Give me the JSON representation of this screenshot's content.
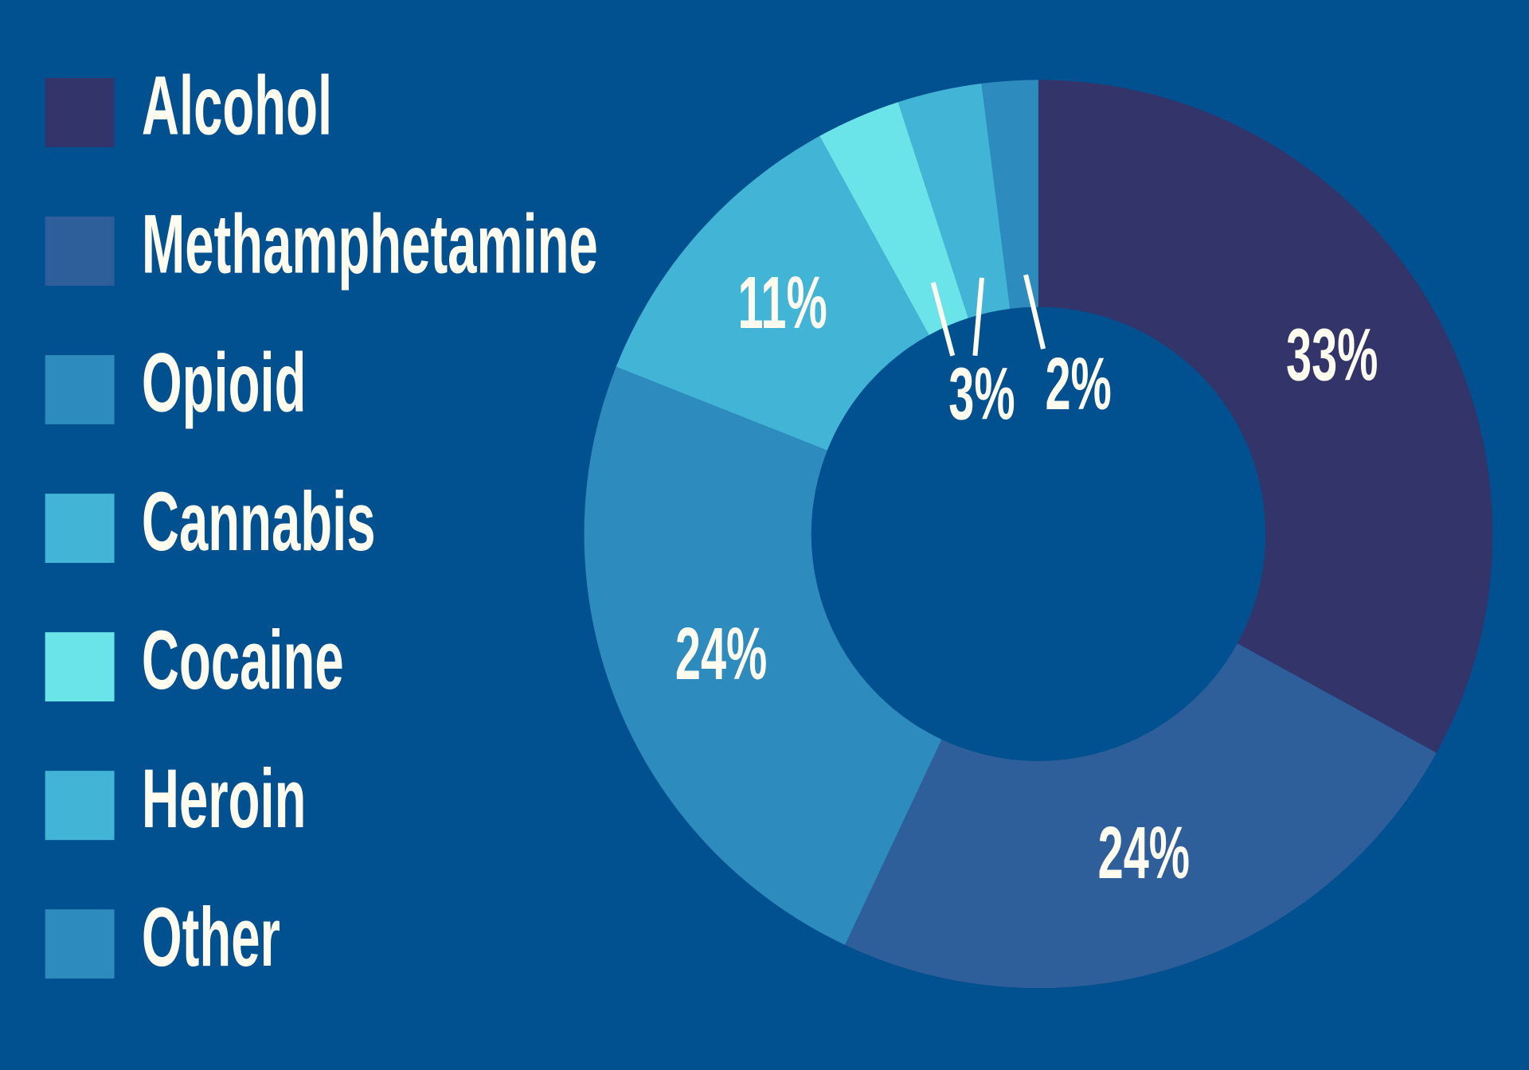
{
  "chart_data": {
    "type": "donut",
    "categories": [
      "Alcohol",
      "Methamphetamine",
      "Opioid",
      "Cannabis",
      "Cocaine",
      "Heroin",
      "Other"
    ],
    "values": [
      33,
      24,
      24,
      11,
      3,
      3,
      2
    ],
    "value_labels": [
      "33%",
      "24%",
      "24%",
      "11%",
      "3%",
      null,
      "2%"
    ],
    "colors": [
      "#32346a",
      "#2f5f9a",
      "#2e8bbd",
      "#42b4d6",
      "#6ae4e8",
      "#42b4d6",
      "#2e8bbd"
    ],
    "legend": "left"
  }
}
